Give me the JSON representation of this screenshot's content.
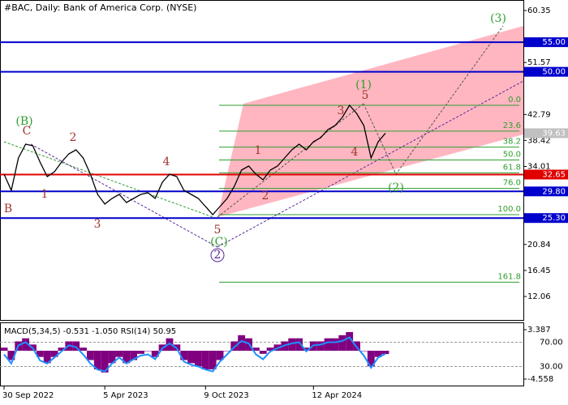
{
  "chart_data": [
    {
      "type": "line",
      "title": "#BAC, Daily:  Bank of America Corp. (NYSE)",
      "color": "#000000",
      "categories": [
        "30 Sep 2022",
        null,
        null,
        null,
        null,
        null,
        null,
        null,
        null,
        null,
        null,
        null,
        null,
        null,
        "5 Apr 2023",
        null,
        null,
        null,
        null,
        null,
        null,
        null,
        null,
        null,
        null,
        null,
        null,
        null,
        "9 Oct 2023",
        null,
        null,
        null,
        null,
        null,
        null,
        null,
        null,
        null,
        null,
        null,
        null,
        null,
        null,
        "12 Apr 2024",
        null,
        null,
        null,
        null,
        null,
        null,
        null,
        null,
        null,
        null
      ],
      "values": [
        32.72,
        29.98,
        35.45,
        37.78,
        37.5,
        34.77,
        32.31,
        33.13,
        34.77,
        36.14,
        36.82,
        35.45,
        32.72,
        29.3,
        27.66,
        28.61,
        29.3,
        27.93,
        28.61,
        29.3,
        29.57,
        28.61,
        31.35,
        32.72,
        32.31,
        29.98,
        29.3,
        28.61,
        27.24,
        25.88,
        27.24,
        28.61,
        30.66,
        33.4,
        34.08,
        32.72,
        31.76,
        33.4,
        34.08,
        35.45,
        36.82,
        37.78,
        36.82,
        38.19,
        38.87,
        40.24,
        40.92,
        42.29,
        44.34,
        42.98,
        40.92,
        35.45,
        38.19,
        39.63
      ],
      "ylim": [
        8.09,
        61.58
      ],
      "yticks": [
        60.35,
        51.57,
        42.79,
        38.42,
        34.01,
        20.84,
        16.45,
        12.06
      ],
      "levels": [
        {
          "value": 55,
          "label": "55.00",
          "color": "#0000cc"
        },
        {
          "value": 50,
          "label": "50.00",
          "color": "#0000cc"
        },
        {
          "value": 32.65,
          "label": "32.65",
          "color": "#e00000"
        },
        {
          "value": 29.8,
          "label": "29.80",
          "color": "#0000cc"
        },
        {
          "value": 25.3,
          "label": "25.30",
          "color": "#0000cc"
        }
      ],
      "fib_levels": [
        {
          "value": 0,
          "label": "0.0"
        },
        23.6,
        38.2,
        {
          "value": 50,
          "label": "50.0"
        },
        61.8,
        {
          "value": 76,
          "label": "76.0"
        },
        {
          "value": 100,
          "label": "100.0"
        },
        161.8
      ],
      "annotations": [
        {
          "text": "(B)",
          "color": "#2e9e2e"
        },
        {
          "text": "C",
          "color": "#a0342c"
        },
        {
          "text": "B",
          "color": "#a0342c"
        },
        {
          "text": "1",
          "color": "#a0342c"
        },
        {
          "text": "2",
          "color": "#a0342c"
        },
        {
          "text": "3",
          "color": "#a0342c"
        },
        {
          "text": "4",
          "color": "#a0342c"
        },
        {
          "text": "5",
          "color": "#a0342c"
        },
        {
          "text": "(C)",
          "color": "#2e9e2e"
        },
        {
          "text": "2",
          "color": "#5a2a9a"
        },
        {
          "text": "1",
          "color": "#a0342c"
        },
        {
          "text": "2",
          "color": "#a0342c"
        },
        {
          "text": "3",
          "color": "#a0342c"
        },
        {
          "text": "(1)",
          "color": "#2e9e2e"
        },
        {
          "text": "5",
          "color": "#a0342c"
        },
        {
          "text": "4",
          "color": "#a0342c"
        },
        {
          "text": "(2)",
          "color": "#2e9e2e"
        },
        {
          "text": "(3)",
          "color": "#2e9e2e"
        }
      ]
    },
    {
      "type": "bar",
      "title": "MACD(5,34,5) -0.531 -1.050 RSI(14) 50.95",
      "series": [
        {
          "color": "#800080",
          "values": [
            0.5,
            -1.5,
            1.5,
            2.0,
            1.0,
            -1.0,
            -2.0,
            -1.0,
            0.5,
            1.5,
            1.5,
            0.5,
            -1.5,
            -3.0,
            -3.5,
            -2.0,
            -1.0,
            -2.0,
            -1.5,
            -0.5,
            0,
            -1.0,
            1.0,
            2.0,
            1.0,
            -1.5,
            -2.0,
            -2.5,
            -3.0,
            -3.0,
            -1.5,
            0,
            1.5,
            2.5,
            2.0,
            0.5,
            -0.5,
            0.5,
            1.0,
            1.5,
            2.0,
            2.0,
            0.5,
            1.5,
            1.5,
            2.0,
            2.0,
            2.5,
            3.0,
            1.5,
            0,
            -2.5,
            -1.0,
            -0.531
          ]
        },
        {
          "color": "#1e90ff",
          "axis": "y2",
          "values": [
            50,
            35,
            65,
            70,
            60,
            40,
            35,
            45,
            55,
            65,
            62,
            50,
            35,
            25,
            22,
            35,
            45,
            35,
            42,
            48,
            50,
            42,
            60,
            68,
            60,
            38,
            33,
            30,
            25,
            22,
            38,
            50,
            62,
            72,
            68,
            50,
            42,
            55,
            60,
            65,
            68,
            70,
            55,
            65,
            66,
            70,
            70,
            72,
            78,
            62,
            48,
            28,
            45,
            50.95
          ]
        }
      ],
      "ylim": [
        -4.558,
        3.387
      ],
      "yticks": [
        3.387,
        -4.558
      ],
      "y2lim": [
        0,
        100
      ],
      "y2ticks": [
        {
          "value": 70,
          "label": "70.00"
        },
        {
          "value": 30,
          "label": "30.00"
        }
      ]
    }
  ]
}
